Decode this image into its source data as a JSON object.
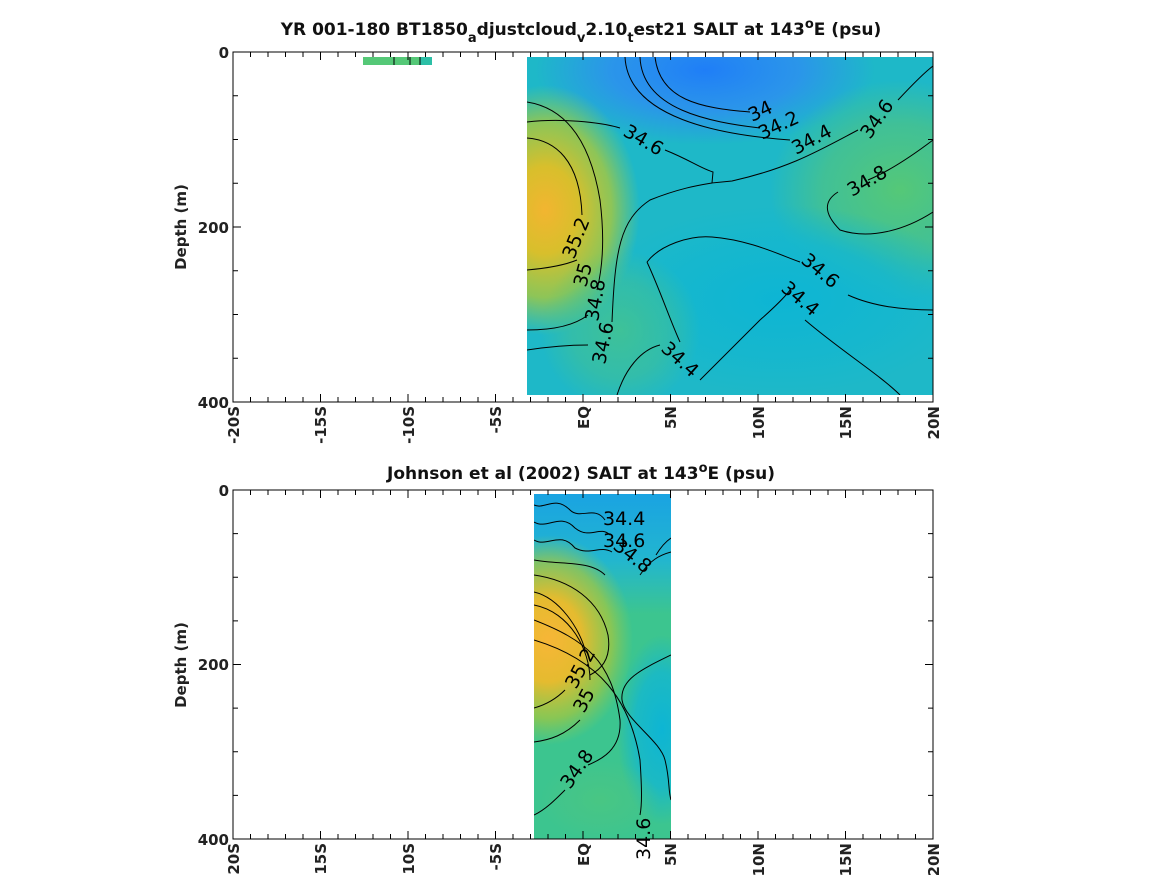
{
  "chart_data": [
    {
      "type": "heatmap",
      "title": "YR 001-180 BT1850",
      "title_sub1": "a",
      "title_mid1": "djustcloud",
      "title_sub2": "v",
      "title_mid2": "2.10",
      "title_sub3": "t",
      "title_mid3": "est21 SALT at 143",
      "title_sup": "o",
      "title_end": "E (psu)",
      "xlabel": "",
      "ylabel": "Depth (m)",
      "xlim": [
        -20,
        20
      ],
      "ylim": [
        400,
        0
      ],
      "y_ticks": [
        "0",
        "200",
        "400"
      ],
      "x_ticks": [
        "-20S",
        "-15S",
        "-10S",
        "-5S",
        "EQ",
        "5N",
        "10N",
        "15N",
        "20N"
      ],
      "colorscale": [
        "#1f7ef7",
        "#0fb4d6",
        "#3fc595",
        "#7fcf60",
        "#c6c22e",
        "#f2b530"
      ],
      "data_extent_lat": [
        -3.4,
        20
      ],
      "data_extent_depth": [
        5,
        395
      ],
      "stray_patch_lat": [
        -12.5,
        -8.6
      ],
      "stray_patch_depth": [
        5,
        15
      ],
      "contour_labels": [
        "34",
        "34.2",
        "34.4",
        "34.6",
        "34.6",
        "34.8",
        "35.2",
        "35",
        "34.8",
        "34.6",
        "34.6",
        "34.4",
        "34.4"
      ]
    },
    {
      "type": "heatmap",
      "title": "Johnson et al (2002) SALT at 143",
      "title_sup": "o",
      "title_end": "E (psu)",
      "xlabel": "",
      "ylabel": "Depth (m)",
      "xlim": [
        -20,
        20
      ],
      "ylim": [
        400,
        0
      ],
      "y_ticks": [
        "0",
        "200",
        "400"
      ],
      "x_ticks": [
        "-20S",
        "-15S",
        "-10S",
        "-5S",
        "EQ",
        "5N",
        "10N",
        "15N",
        "20N"
      ],
      "colorscale": [
        "#1f7ef7",
        "#0fb4d6",
        "#3fc595",
        "#7fcf60",
        "#c6c22e",
        "#f2b530"
      ],
      "data_extent_lat": [
        -2.9,
        5
      ],
      "data_extent_depth": [
        5,
        400
      ],
      "contour_labels": [
        "34.4",
        "34.6",
        "34.8",
        "35.2",
        "35",
        "34.8",
        "34.6"
      ]
    }
  ]
}
